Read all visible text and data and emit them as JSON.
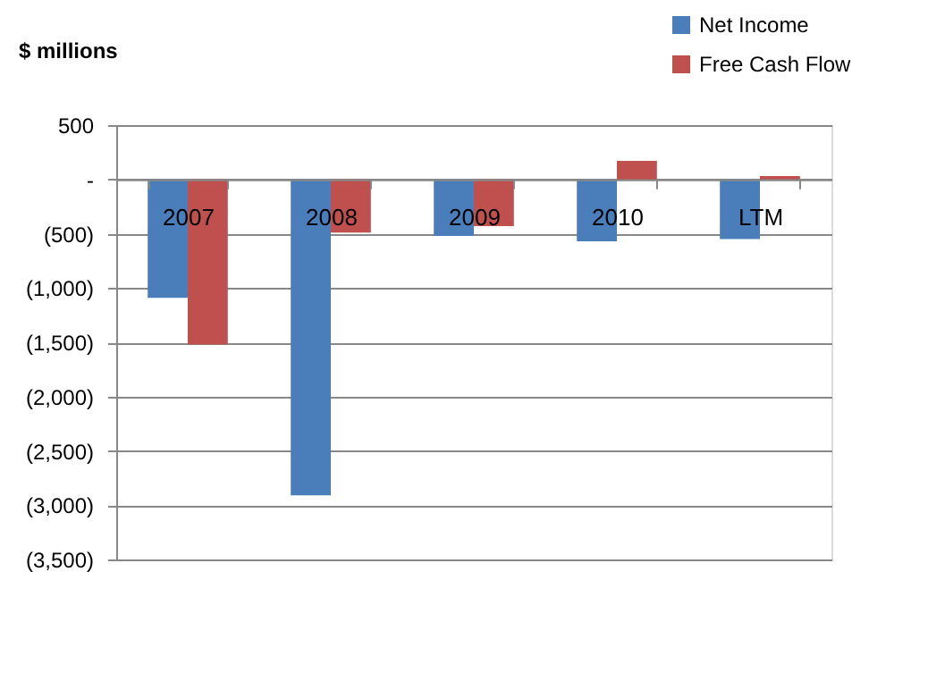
{
  "chart_data": {
    "type": "bar",
    "ylabel": "$ millions",
    "categories": [
      "2007",
      "2008",
      "2009",
      "2010",
      "LTM"
    ],
    "series": [
      {
        "name": "Net Income",
        "color": "#4a7ebb",
        "values": [
          -1090,
          -2910,
          -520,
          -570,
          -550
        ]
      },
      {
        "name": "Free Cash Flow",
        "color": "#c0504d",
        "values": [
          -1520,
          -490,
          -430,
          170,
          30
        ]
      }
    ],
    "ylim": [
      -3500,
      500
    ],
    "yticks": [
      {
        "value": 500,
        "label": "500"
      },
      {
        "value": 0,
        "label": "-"
      },
      {
        "value": -500,
        "label": "(500)"
      },
      {
        "value": -1000,
        "label": "(1,000)"
      },
      {
        "value": -1500,
        "label": "(1,500)"
      },
      {
        "value": -2000,
        "label": "(2,000)"
      },
      {
        "value": -2500,
        "label": "(2,500)"
      },
      {
        "value": -3000,
        "label": "(3,000)"
      },
      {
        "value": -3500,
        "label": "(3,500)"
      }
    ],
    "grid": "y",
    "legend": "top right"
  }
}
